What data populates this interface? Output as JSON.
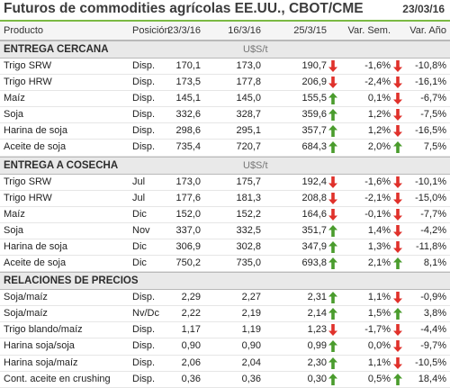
{
  "title": "Futuros de commodities agrícolas EE.UU., CBOT/CME",
  "date": "23/03/16",
  "colors": {
    "up": "#4a9c2d",
    "down": "#e0312b",
    "accent": "#7bb944"
  },
  "columns": {
    "product": "Producto",
    "position": "Posición",
    "d1": "23/3/16",
    "d2": "16/3/16",
    "d3": "25/3/15",
    "p1": "Var. Sem.",
    "p2": "Var. Año"
  },
  "sections": [
    {
      "name": "ENTREGA CERCANA",
      "unit": "U$S/t",
      "rows": [
        {
          "product": "Trigo SRW",
          "position": "Disp.",
          "d1": "170,1",
          "d2": "173,0",
          "d3": "190,7",
          "a1": "down",
          "p1": "-1,6%",
          "a2": "down",
          "p2": "-10,8%"
        },
        {
          "product": "Trigo HRW",
          "position": "Disp.",
          "d1": "173,5",
          "d2": "177,8",
          "d3": "206,9",
          "a1": "down",
          "p1": "-2,4%",
          "a2": "down",
          "p2": "-16,1%"
        },
        {
          "product": "Maíz",
          "position": "Disp.",
          "d1": "145,1",
          "d2": "145,0",
          "d3": "155,5",
          "a1": "up",
          "p1": "0,1%",
          "a2": "down",
          "p2": "-6,7%"
        },
        {
          "product": "Soja",
          "position": "Disp.",
          "d1": "332,6",
          "d2": "328,7",
          "d3": "359,6",
          "a1": "up",
          "p1": "1,2%",
          "a2": "down",
          "p2": "-7,5%"
        },
        {
          "product": "Harina de soja",
          "position": "Disp.",
          "d1": "298,6",
          "d2": "295,1",
          "d3": "357,7",
          "a1": "up",
          "p1": "1,2%",
          "a2": "down",
          "p2": "-16,5%"
        },
        {
          "product": "Aceite de soja",
          "position": "Disp.",
          "d1": "735,4",
          "d2": "720,7",
          "d3": "684,3",
          "a1": "up",
          "p1": "2,0%",
          "a2": "up",
          "p2": "7,5%"
        }
      ]
    },
    {
      "name": "ENTREGA A COSECHA",
      "unit": "U$S/t",
      "rows": [
        {
          "product": "Trigo SRW",
          "position": "Jul",
          "d1": "173,0",
          "d2": "175,7",
          "d3": "192,4",
          "a1": "down",
          "p1": "-1,6%",
          "a2": "down",
          "p2": "-10,1%"
        },
        {
          "product": "Trigo HRW",
          "position": "Jul",
          "d1": "177,6",
          "d2": "181,3",
          "d3": "208,8",
          "a1": "down",
          "p1": "-2,1%",
          "a2": "down",
          "p2": "-15,0%"
        },
        {
          "product": "Maíz",
          "position": "Dic",
          "d1": "152,0",
          "d2": "152,2",
          "d3": "164,6",
          "a1": "down",
          "p1": "-0,1%",
          "a2": "down",
          "p2": "-7,7%"
        },
        {
          "product": "Soja",
          "position": "Nov",
          "d1": "337,0",
          "d2": "332,5",
          "d3": "351,7",
          "a1": "up",
          "p1": "1,4%",
          "a2": "down",
          "p2": "-4,2%"
        },
        {
          "product": "Harina de soja",
          "position": "Dic",
          "d1": "306,9",
          "d2": "302,8",
          "d3": "347,9",
          "a1": "up",
          "p1": "1,3%",
          "a2": "down",
          "p2": "-11,8%"
        },
        {
          "product": "Aceite de soja",
          "position": "Dic",
          "d1": "750,2",
          "d2": "735,0",
          "d3": "693,8",
          "a1": "up",
          "p1": "2,1%",
          "a2": "up",
          "p2": "8,1%"
        }
      ]
    },
    {
      "name": "RELACIONES DE PRECIOS",
      "unit": "",
      "rows": [
        {
          "product": "Soja/maíz",
          "position": "Disp.",
          "d1": "2,29",
          "d2": "2,27",
          "d3": "2,31",
          "a1": "up",
          "p1": "1,1%",
          "a2": "down",
          "p2": "-0,9%"
        },
        {
          "product": "Soja/maíz",
          "position": "Nv/Dc",
          "d1": "2,22",
          "d2": "2,19",
          "d3": "2,14",
          "a1": "up",
          "p1": "1,5%",
          "a2": "up",
          "p2": "3,8%"
        },
        {
          "product": "Trigo blando/maíz",
          "position": "Disp.",
          "d1": "1,17",
          "d2": "1,19",
          "d3": "1,23",
          "a1": "down",
          "p1": "-1,7%",
          "a2": "down",
          "p2": "-4,4%"
        },
        {
          "product": "Harina soja/soja",
          "position": "Disp.",
          "d1": "0,90",
          "d2": "0,90",
          "d3": "0,99",
          "a1": "up",
          "p1": "0,0%",
          "a2": "down",
          "p2": "-9,7%"
        },
        {
          "product": "Harina soja/maíz",
          "position": "Disp.",
          "d1": "2,06",
          "d2": "2,04",
          "d3": "2,30",
          "a1": "up",
          "p1": "1,1%",
          "a2": "down",
          "p2": "-10,5%"
        },
        {
          "product": "Cont. aceite en crushing",
          "position": "Disp.",
          "d1": "0,36",
          "d2": "0,36",
          "d3": "0,30",
          "a1": "up",
          "p1": "0,5%",
          "a2": "up",
          "p2": "18,4%"
        }
      ]
    }
  ]
}
